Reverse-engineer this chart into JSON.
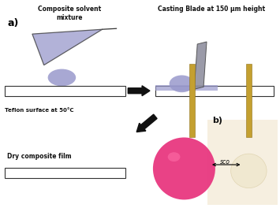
{
  "bg_color": "#ffffff",
  "label_a": "a)",
  "label_b": "b)",
  "text_composite": "Composite solvent\nmixture",
  "text_casting": "Casting Blade at 150 μm height",
  "text_teflon": "Teflon surface at 50°C",
  "text_dry": "Dry composite film",
  "text_sco": "sco",
  "blob_color": "#9999cc",
  "blade_color": "#888899",
  "funnel_color": "#9999cc",
  "film_color": "#aaaacc"
}
